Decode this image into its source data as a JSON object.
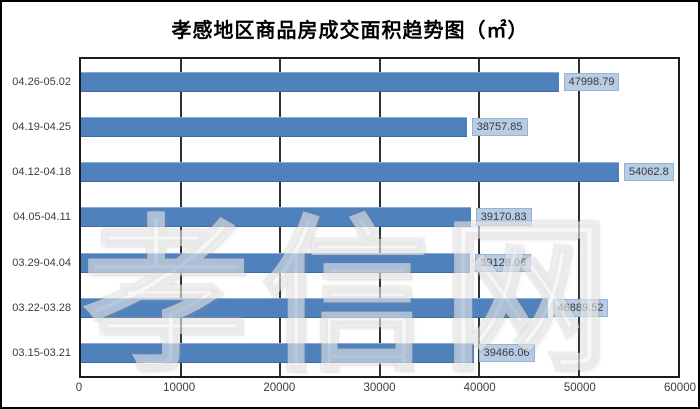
{
  "chart_data": {
    "type": "bar",
    "orientation": "horizontal",
    "title": "孝感地区商品房成交面积趋势图（㎡）",
    "categories": [
      "04.26-05.02",
      "04.19-04.25",
      "04.12-04.18",
      "04.05-04.11",
      "03.29-04.04",
      "03.22-03.28",
      "03.15-03.21"
    ],
    "values": [
      47998.79,
      38757.85,
      54062.8,
      39170.83,
      39128.06,
      46889.52,
      39466.06
    ],
    "value_labels": [
      "47998.79",
      "38757.85",
      "54062.8",
      "39170.83",
      "39128.06",
      "46889.52",
      "39466.06"
    ],
    "xlabel": "",
    "ylabel": "",
    "xlim": [
      0,
      60000
    ],
    "x_ticks": [
      "0",
      "10000",
      "20000",
      "30000",
      "40000",
      "50000",
      "60000"
    ],
    "grid": "vertical-on",
    "legend": "none",
    "colors": {
      "bar": "#4f81bd",
      "value_label_bg": "#b8cce4",
      "value_label_border": "#95b3d7",
      "gridline": "#2f2f2f",
      "axis_text": "#3d3d3d"
    }
  },
  "watermark": {
    "text": "孝信网"
  }
}
